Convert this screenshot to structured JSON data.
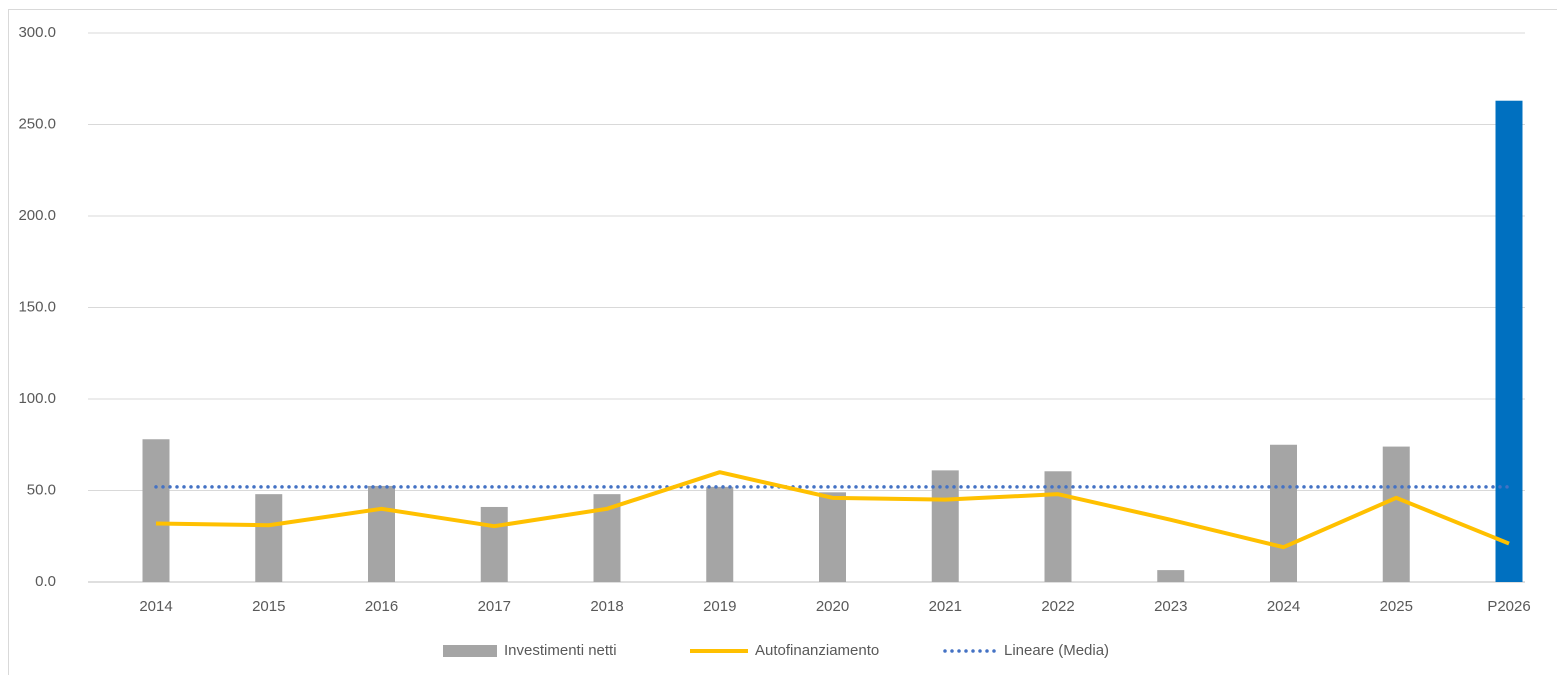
{
  "chart_data": {
    "type": "bar",
    "categories": [
      "2014",
      "2015",
      "2016",
      "2017",
      "2018",
      "2019",
      "2020",
      "2021",
      "2022",
      "2023",
      "2024",
      "2025",
      "P2026"
    ],
    "series": [
      {
        "name": "Investimenti netti",
        "type": "bar",
        "color": "#a5a5a5",
        "colors": [
          "#a5a5a5",
          "#a5a5a5",
          "#a5a5a5",
          "#a5a5a5",
          "#a5a5a5",
          "#a5a5a5",
          "#a5a5a5",
          "#a5a5a5",
          "#a5a5a5",
          "#a5a5a5",
          "#a5a5a5",
          "#a5a5a5",
          "#0070c0"
        ],
        "values": [
          78,
          48,
          52.5,
          41,
          48,
          52,
          49,
          61,
          60.5,
          6.5,
          75,
          74,
          263
        ]
      },
      {
        "name": "Autofinanziamento",
        "type": "line",
        "color": "#ffc000",
        "values": [
          32,
          31,
          40,
          30.5,
          40,
          60,
          46,
          45,
          48,
          34,
          19,
          46,
          21
        ]
      },
      {
        "name": "Lineare (Media)",
        "type": "dotted",
        "color": "#4472c4",
        "values": [
          52,
          52,
          52,
          52,
          52,
          52,
          52,
          52,
          52,
          52,
          52,
          52,
          52
        ]
      }
    ],
    "ylim": [
      0,
      300
    ],
    "yticks": [
      {
        "value": 0,
        "label": "0.0"
      },
      {
        "value": 50,
        "label": "50.0"
      },
      {
        "value": 100,
        "label": "100.0"
      },
      {
        "value": 150,
        "label": "150.0"
      },
      {
        "value": 200,
        "label": "200.0"
      },
      {
        "value": 250,
        "label": "250.0"
      },
      {
        "value": 300,
        "label": "300.0"
      }
    ],
    "grid": true,
    "legend": "bottom"
  }
}
